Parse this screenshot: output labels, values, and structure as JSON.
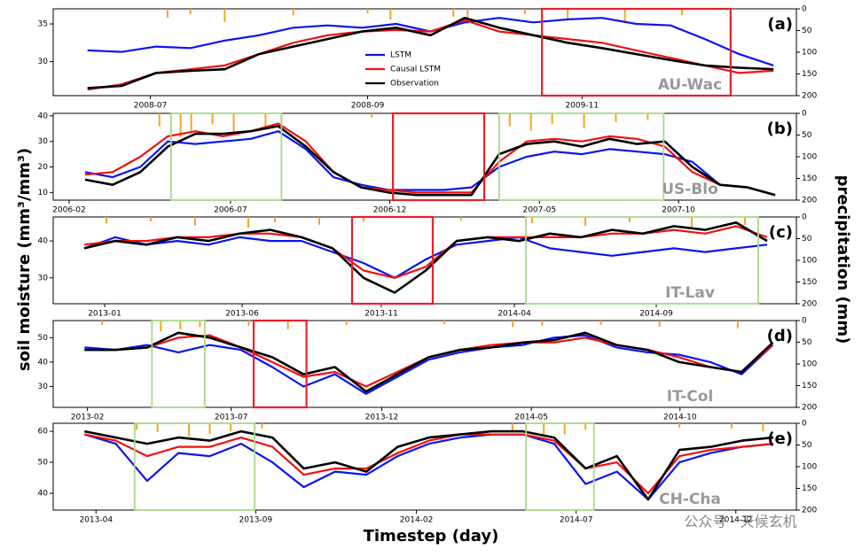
{
  "figure": {
    "xlabel": "Timestep (day)",
    "ylabel": "soil moisture (mm³/mm³)",
    "y2label": "precipitation (mm)",
    "watermark": "公众号 · 天候玄机"
  },
  "chart_data": [
    {
      "type": "line",
      "panel_label": "(a)",
      "site": "AU-Wac",
      "legend": "upper center",
      "xlim": [
        0,
        260
      ],
      "xticks": [
        {
          "value": 34,
          "label": "2008-07"
        },
        {
          "value": 110,
          "label": "2008-09"
        },
        {
          "value": 185,
          "label": "2009-11"
        }
      ],
      "ylim": [
        25.5,
        37
      ],
      "yticks": [
        30,
        35
      ],
      "y2lim": [
        0,
        200
      ],
      "y2_inverted": true,
      "y2ticks": [
        0,
        50,
        100,
        150,
        200
      ],
      "highlights": [
        {
          "x0": 171,
          "x1": 237,
          "color": "#e8202a"
        }
      ],
      "x": [
        12,
        24,
        36,
        48,
        60,
        72,
        84,
        96,
        108,
        120,
        132,
        144,
        156,
        168,
        180,
        192,
        204,
        216,
        228,
        240,
        252
      ],
      "series": [
        {
          "name": "LSTM",
          "color": "#0a14f0",
          "values": [
            31.5,
            31.3,
            32.0,
            31.8,
            32.8,
            33.5,
            34.5,
            34.8,
            34.5,
            35.0,
            34.0,
            35.2,
            35.8,
            35.2,
            35.6,
            35.8,
            35.0,
            34.8,
            33.0,
            31.0,
            29.5
          ]
        },
        {
          "name": "Causal LSTM",
          "color": "#f01010",
          "values": [
            26.3,
            27.0,
            28.5,
            29.0,
            29.5,
            31.0,
            32.5,
            33.5,
            34.0,
            34.2,
            34.0,
            35.5,
            34.0,
            33.5,
            33.0,
            32.5,
            31.5,
            30.5,
            29.5,
            28.5,
            28.8
          ]
        },
        {
          "name": "Observation",
          "color": "#000000",
          "values": [
            26.5,
            26.8,
            28.5,
            28.8,
            29.0,
            31.0,
            32.0,
            33.0,
            34.0,
            34.5,
            33.5,
            35.8,
            34.5,
            33.5,
            32.5,
            31.8,
            31.0,
            30.2,
            29.5,
            29.2,
            29.0
          ]
        }
      ],
      "precipitation": {
        "color": "#f5a623",
        "x": [
          40,
          48,
          60,
          84,
          110,
          118,
          140,
          145,
          165,
          180,
          200,
          220
        ],
        "values": [
          20,
          12,
          30,
          15,
          10,
          25,
          18,
          35,
          12,
          22,
          28,
          15
        ]
      }
    },
    {
      "type": "line",
      "panel_label": "(b)",
      "site": "US-Blo",
      "xlim": [
        0,
        700
      ],
      "xticks": [
        {
          "value": 15,
          "label": "2006-02"
        },
        {
          "value": 167,
          "label": "2006-07"
        },
        {
          "value": 317,
          "label": "2006-12"
        },
        {
          "value": 458,
          "label": "2007-05"
        },
        {
          "value": 589,
          "label": "2007-10"
        }
      ],
      "ylim": [
        7,
        41
      ],
      "yticks": [
        10,
        20,
        30,
        40
      ],
      "y2lim": [
        0,
        200
      ],
      "y2_inverted": true,
      "y2ticks": [
        0,
        50,
        100,
        150,
        200
      ],
      "highlights": [
        {
          "x0": 111,
          "x1": 215,
          "color": "#a8d98a"
        },
        {
          "x0": 320,
          "x1": 406,
          "color": "#e8202a"
        },
        {
          "x0": 420,
          "x1": 575,
          "color": "#a8d98a"
        }
      ],
      "x": [
        30,
        56,
        82,
        108,
        134,
        160,
        186,
        212,
        238,
        264,
        290,
        316,
        342,
        368,
        394,
        420,
        446,
        472,
        498,
        524,
        550,
        576,
        602,
        628,
        654,
        680
      ],
      "series": [
        {
          "color": "#0a14f0",
          "values": [
            18,
            16,
            20,
            30,
            29,
            30,
            31,
            34,
            27,
            16,
            13,
            11,
            11,
            11,
            12,
            20,
            24,
            26,
            25,
            27,
            26,
            25,
            22,
            13,
            12,
            9
          ]
        },
        {
          "color": "#f01010",
          "values": [
            17,
            18,
            24,
            32,
            34,
            32,
            34,
            37,
            30,
            18,
            12,
            11,
            10,
            10,
            10,
            22,
            30,
            31,
            30,
            32,
            31,
            28,
            18,
            13,
            12,
            9
          ]
        },
        {
          "color": "#000000",
          "values": [
            15,
            13,
            18,
            28,
            33,
            33,
            34,
            36,
            28,
            18,
            12,
            10,
            9,
            9,
            9,
            25,
            29,
            30,
            28,
            31,
            29,
            30,
            20,
            13,
            12,
            9
          ]
        }
      ],
      "precipitation": {
        "color": "#f5a623",
        "x": [
          100,
          120,
          130,
          150,
          170,
          200,
          215,
          300,
          430,
          450,
          470,
          500,
          530,
          560
        ],
        "values": [
          30,
          55,
          40,
          25,
          45,
          35,
          20,
          10,
          30,
          40,
          25,
          35,
          20,
          15
        ]
      }
    },
    {
      "type": "line",
      "panel_label": "(c)",
      "site": "IT-Lav",
      "xlim": [
        0,
        838
      ],
      "xticks": [
        {
          "value": 58,
          "label": "2013-01"
        },
        {
          "value": 213,
          "label": "2013-06"
        },
        {
          "value": 370,
          "label": "2013-11"
        },
        {
          "value": 520,
          "label": "2014-04"
        },
        {
          "value": 680,
          "label": "2014-09"
        }
      ],
      "ylim": [
        23,
        46.5
      ],
      "yticks": [
        30,
        40
      ],
      "y2lim": [
        0,
        200
      ],
      "y2_inverted": true,
      "y2ticks": [
        0,
        50,
        100,
        150,
        200
      ],
      "highlights": [
        {
          "x0": 337,
          "x1": 428,
          "color": "#e8202a"
        },
        {
          "x0": 533,
          "x1": 795,
          "color": "#a8d98a"
        }
      ],
      "x": [
        35,
        70,
        105,
        140,
        175,
        210,
        245,
        280,
        315,
        350,
        385,
        420,
        455,
        490,
        525,
        560,
        595,
        630,
        665,
        700,
        735,
        770,
        805
      ],
      "series": [
        {
          "color": "#0a14f0",
          "values": [
            38,
            41,
            39,
            40,
            39,
            41,
            40,
            40,
            37,
            34,
            30,
            35,
            39,
            40,
            41,
            38,
            37,
            36,
            37,
            38,
            37,
            38,
            39
          ]
        },
        {
          "color": "#f01010",
          "values": [
            39,
            40,
            40,
            41,
            41,
            42,
            42,
            41,
            38,
            32,
            30,
            33,
            40,
            41,
            41,
            41,
            41,
            42,
            42,
            43,
            42,
            44,
            41
          ]
        },
        {
          "color": "#000000",
          "values": [
            38,
            40,
            39,
            41,
            40,
            42,
            43,
            41,
            38,
            30,
            26,
            32,
            40,
            41,
            40,
            42,
            41,
            43,
            42,
            44,
            43,
            45,
            40
          ]
        }
      ],
      "precipitation": {
        "color": "#f5a623",
        "x": [
          60,
          110,
          160,
          220,
          250,
          300,
          350,
          460,
          540,
          600,
          650,
          720,
          780
        ],
        "values": [
          15,
          10,
          20,
          25,
          12,
          18,
          10,
          8,
          15,
          20,
          12,
          25,
          18
        ]
      }
    },
    {
      "type": "line",
      "panel_label": "(d)",
      "site": "IT-Col",
      "xlim": [
        0,
        760
      ],
      "xticks": [
        {
          "value": 35,
          "label": "2013-02"
        },
        {
          "value": 182,
          "label": "2013-07"
        },
        {
          "value": 336,
          "label": "2013-12"
        },
        {
          "value": 489,
          "label": "2014-05"
        },
        {
          "value": 641,
          "label": "2014-10"
        }
      ],
      "ylim": [
        21.5,
        57
      ],
      "yticks": [
        30,
        40,
        50
      ],
      "y2lim": [
        0,
        200
      ],
      "y2_inverted": true,
      "y2ticks": [
        0,
        50,
        100,
        150,
        200
      ],
      "highlights": [
        {
          "x0": 101,
          "x1": 155,
          "color": "#a8d98a"
        },
        {
          "x0": 205,
          "x1": 259,
          "color": "#e8202a"
        }
      ],
      "x": [
        32,
        64,
        96,
        128,
        160,
        192,
        224,
        256,
        288,
        320,
        352,
        384,
        416,
        448,
        480,
        512,
        544,
        576,
        608,
        640,
        672,
        704,
        736
      ],
      "series": [
        {
          "color": "#0a14f0",
          "values": [
            46,
            45,
            47,
            44,
            47,
            45,
            38,
            30,
            35,
            27,
            34,
            41,
            44,
            46,
            47,
            50,
            51,
            46,
            44,
            43,
            40,
            35,
            47
          ]
        },
        {
          "color": "#f01010",
          "values": [
            45,
            45,
            46,
            50,
            51,
            46,
            40,
            34,
            36,
            30,
            36,
            42,
            45,
            47,
            48,
            48,
            50,
            47,
            45,
            42,
            38,
            36,
            47
          ]
        },
        {
          "color": "#000000",
          "values": [
            45,
            45,
            46,
            52,
            50,
            46,
            42,
            35,
            38,
            28,
            35,
            42,
            45,
            46,
            48,
            49,
            52,
            47,
            45,
            40,
            38,
            36,
            48
          ]
        }
      ],
      "precipitation": {
        "color": "#f5a623",
        "x": [
          50,
          110,
          130,
          150,
          200,
          240,
          300,
          400,
          470,
          500,
          560,
          620,
          700
        ],
        "values": [
          10,
          25,
          20,
          15,
          12,
          20,
          10,
          8,
          15,
          12,
          10,
          14,
          18
        ]
      }
    },
    {
      "type": "line",
      "panel_label": "(e)",
      "site": "CH-Cha",
      "xlim": [
        0,
        712
      ],
      "xticks": [
        {
          "value": 41,
          "label": "2013-04"
        },
        {
          "value": 194,
          "label": "2013-09"
        },
        {
          "value": 348,
          "label": "2014-02"
        },
        {
          "value": 501,
          "label": "2014-07"
        },
        {
          "value": 654,
          "label": "2014-12"
        }
      ],
      "ylim": [
        34.6,
        62.6
      ],
      "yticks": [
        40,
        50,
        60
      ],
      "y2lim": [
        0,
        200
      ],
      "y2_inverted": true,
      "y2ticks": [
        0,
        50,
        100,
        150,
        200
      ],
      "highlights": [
        {
          "x0": 78,
          "x1": 193,
          "color": "#a8d98a"
        },
        {
          "x0": 453,
          "x1": 518,
          "color": "#a8d98a"
        }
      ],
      "x": [
        30,
        60,
        90,
        120,
        150,
        180,
        210,
        240,
        270,
        300,
        330,
        360,
        390,
        420,
        450,
        480,
        510,
        540,
        570,
        600,
        630,
        660,
        690
      ],
      "series": [
        {
          "color": "#0a14f0",
          "values": [
            59,
            56,
            44,
            53,
            52,
            56,
            50,
            42,
            47,
            46,
            52,
            56,
            58,
            59,
            59,
            56,
            43,
            47,
            38,
            50,
            53,
            55,
            56
          ]
        },
        {
          "color": "#f01010",
          "values": [
            59,
            57,
            52,
            55,
            55,
            58,
            55,
            46,
            48,
            48,
            53,
            57,
            59,
            59,
            59,
            57,
            48,
            50,
            40,
            52,
            54,
            55,
            56
          ]
        },
        {
          "color": "#000000",
          "values": [
            60,
            58,
            56,
            58,
            57,
            60,
            58,
            48,
            50,
            47,
            55,
            58,
            59,
            60,
            60,
            58,
            48,
            52,
            38,
            54,
            55,
            57,
            58
          ]
        }
      ],
      "precipitation": {
        "color": "#f5a623",
        "x": [
          80,
          100,
          130,
          150,
          170,
          200,
          440,
          470,
          490,
          510,
          600,
          650,
          680
        ],
        "values": [
          15,
          20,
          30,
          25,
          18,
          12,
          20,
          30,
          25,
          15,
          10,
          12,
          18
        ]
      }
    }
  ]
}
